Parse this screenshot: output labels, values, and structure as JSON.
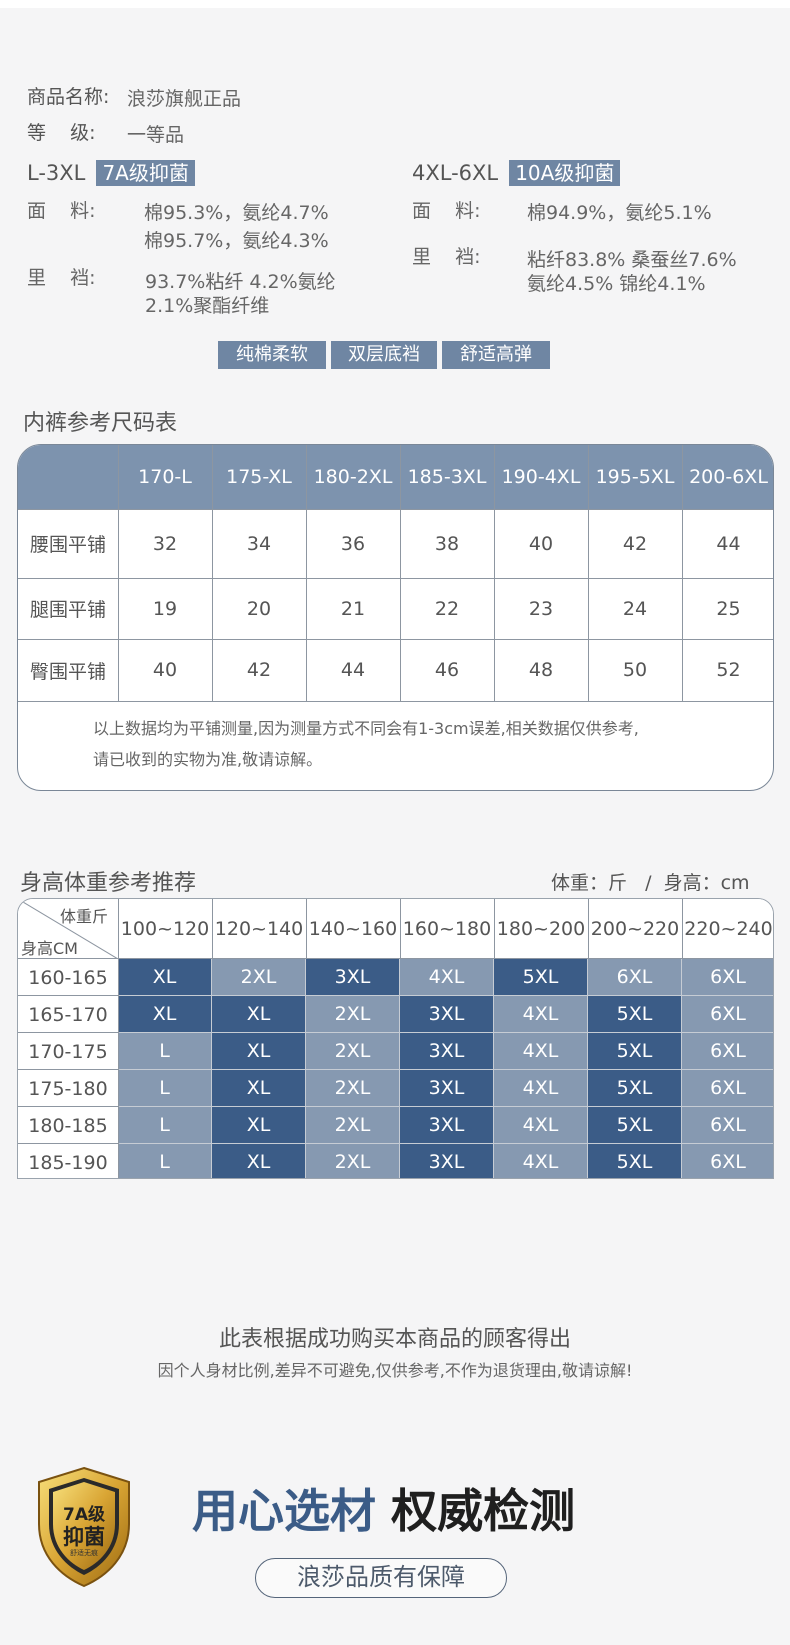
{
  "info": {
    "name_label": "商品名称:",
    "name_value": "浪莎旗舰正品",
    "grade_label": "等    级:",
    "grade_value": "一等品"
  },
  "left_spec": {
    "size_range": "L-3XL",
    "tag": "7A级抑菌",
    "fabric_label": "面    料:",
    "fabric_lines": [
      "棉95.3%，氨纶4.7%",
      "棉95.7%，氨纶4.3%"
    ],
    "lining_label": "里    裆:",
    "lining_lines": [
      "93.7%粘纤 4.2%氨纶",
      "2.1%聚酯纤维"
    ]
  },
  "right_spec": {
    "size_range": "4XL-6XL",
    "tag": "10A级抑菌",
    "fabric_label": "面    料:",
    "fabric_lines": [
      "棉94.9%，氨纶5.1%"
    ],
    "lining_label": "里    裆:",
    "lining_lines": [
      "粘纤83.8% 桑蚕丝7.6%",
      "氨纶4.5% 锦纶4.1%"
    ]
  },
  "features": [
    "纯棉柔软",
    "双层底裆",
    "舒适高弹"
  ],
  "size_chart": {
    "title": "内裤参考尺码表",
    "columns": [
      "170-L",
      "175-XL",
      "180-2XL",
      "185-3XL",
      "190-4XL",
      "195-5XL",
      "200-6XL"
    ],
    "rows": [
      {
        "label": "腰围平铺",
        "values": [
          "32",
          "34",
          "36",
          "38",
          "40",
          "42",
          "44"
        ]
      },
      {
        "label": "腿围平铺",
        "values": [
          "19",
          "20",
          "21",
          "22",
          "23",
          "24",
          "25"
        ]
      },
      {
        "label": "臀围平铺",
        "values": [
          "40",
          "42",
          "44",
          "46",
          "48",
          "50",
          "52"
        ]
      }
    ],
    "note_lines": [
      "以上数据均为平铺测量,因为测量方式不同会有1-3cm误差,相关数据仅供参考,",
      "请已收到的实物为准,敬请谅解。"
    ]
  },
  "recommend": {
    "title": "身高体重参考推荐",
    "units": "体重：斤   /  身高：cm",
    "corner_top": "体重斤",
    "corner_bottom": "身高CM",
    "columns": [
      "100~120",
      "120~140",
      "140~160",
      "160~180",
      "180~200",
      "200~220",
      "220~240"
    ],
    "rows": [
      {
        "label": "160-165",
        "values": [
          "XL",
          "2XL",
          "3XL",
          "4XL",
          "5XL",
          "6XL",
          "6XL"
        ],
        "shades": [
          "d",
          "l",
          "d",
          "l",
          "d",
          "l",
          "l"
        ]
      },
      {
        "label": "165-170",
        "values": [
          "XL",
          "XL",
          "2XL",
          "3XL",
          "4XL",
          "5XL",
          "6XL"
        ],
        "shades": [
          "d",
          "d",
          "l",
          "d",
          "l",
          "d",
          "l"
        ]
      },
      {
        "label": "170-175",
        "values": [
          "L",
          "XL",
          "2XL",
          "3XL",
          "4XL",
          "5XL",
          "6XL"
        ],
        "shades": [
          "l",
          "d",
          "l",
          "d",
          "l",
          "d",
          "l"
        ]
      },
      {
        "label": "175-180",
        "values": [
          "L",
          "XL",
          "2XL",
          "3XL",
          "4XL",
          "5XL",
          "6XL"
        ],
        "shades": [
          "l",
          "d",
          "l",
          "d",
          "l",
          "d",
          "l"
        ]
      },
      {
        "label": "180-185",
        "values": [
          "L",
          "XL",
          "2XL",
          "3XL",
          "4XL",
          "5XL",
          "6XL"
        ],
        "shades": [
          "l",
          "d",
          "l",
          "d",
          "l",
          "d",
          "l"
        ]
      },
      {
        "label": "185-190",
        "values": [
          "L",
          "XL",
          "2XL",
          "3XL",
          "4XL",
          "5XL",
          "6XL"
        ],
        "shades": [
          "l",
          "d",
          "l",
          "d",
          "l",
          "d",
          "l"
        ]
      }
    ]
  },
  "disclaimer": {
    "line1": "此表根据成功购买本商品的顾客得出",
    "line2": "因个人身材比例,差异不可避免,仅供参考,不作为退货理由,敬请谅解!"
  },
  "badge": {
    "line1": "7A级",
    "line2": "抑菌",
    "line3": "舒适无痕"
  },
  "slogan": {
    "blue": "用心选材",
    "dark": "权威检测",
    "pill": "浪莎品质有保障"
  },
  "colors": {
    "accent": "#6f86a3",
    "header": "#7d93ae",
    "dark_cell": "#3b5c87",
    "light_cell": "#8699b1"
  }
}
